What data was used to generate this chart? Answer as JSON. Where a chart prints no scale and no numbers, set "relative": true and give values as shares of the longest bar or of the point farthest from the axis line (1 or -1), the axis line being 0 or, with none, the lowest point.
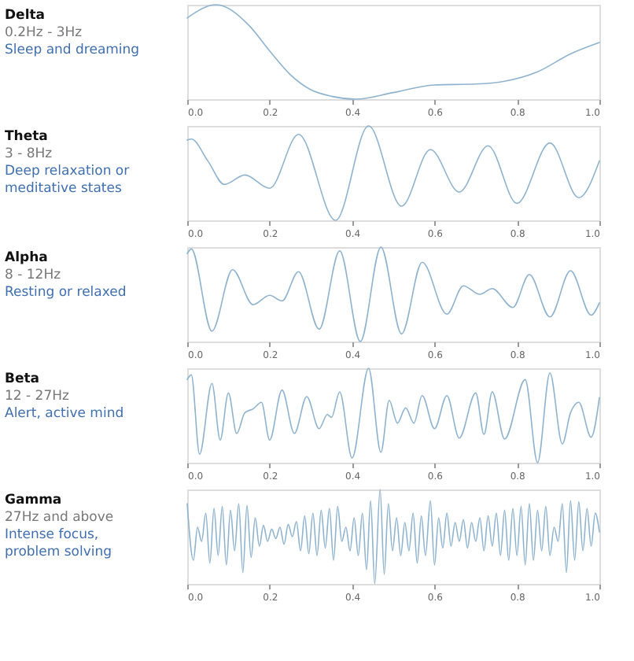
{
  "chart_data": [
    {
      "type": "line",
      "annotations": [
        "Delta",
        "0.2Hz - 3Hz",
        "Sleep and dreaming"
      ],
      "color": "#8fb3cf",
      "relative": true,
      "grid": false,
      "xlim": [
        0,
        1
      ],
      "xticks": [
        {
          "value": 0,
          "label": "0.0"
        },
        {
          "value": 0.2,
          "label": "0.2"
        },
        {
          "value": 0.4,
          "label": "0.4"
        },
        {
          "value": 0.6,
          "label": "0.6"
        },
        {
          "value": 0.8,
          "label": "0.8"
        },
        {
          "value": 1,
          "label": "1.0"
        }
      ],
      "x": [
        0,
        0.07,
        0.15,
        0.2,
        0.25,
        0.3,
        0.35,
        0.41,
        0.5,
        0.6,
        0.7,
        0.77,
        0.85,
        0.93,
        1.0
      ],
      "values": [
        0.86,
        1.0,
        0.78,
        0.51,
        0.26,
        0.1,
        0.03,
        0.0,
        0.07,
        0.15,
        0.16,
        0.19,
        0.29,
        0.48,
        0.6
      ]
    },
    {
      "type": "line",
      "annotations": [
        "Theta",
        "3 - 8Hz",
        "Deep relaxation or",
        "meditative states"
      ],
      "color": "#8fb3cf",
      "relative": true,
      "grid": false,
      "xlim": [
        0,
        1
      ],
      "xticks": [
        {
          "value": 0,
          "label": "0.0"
        },
        {
          "value": 0.2,
          "label": "0.2"
        },
        {
          "value": 0.4,
          "label": "0.4"
        },
        {
          "value": 0.6,
          "label": "0.6"
        },
        {
          "value": 0.8,
          "label": "0.8"
        },
        {
          "value": 1,
          "label": "1.0"
        }
      ],
      "x": [
        0,
        0.01,
        0.05,
        0.09,
        0.14,
        0.2,
        0.27,
        0.36,
        0.44,
        0.52,
        0.59,
        0.66,
        0.73,
        0.8,
        0.88,
        0.95,
        1.0
      ],
      "values": [
        0.85,
        0.86,
        0.63,
        0.38,
        0.48,
        0.34,
        0.91,
        0.0,
        1.0,
        0.15,
        0.75,
        0.3,
        0.79,
        0.18,
        0.82,
        0.24,
        0.63
      ]
    },
    {
      "type": "line",
      "annotations": [
        "Alpha",
        "8 - 12Hz",
        "Resting or relaxed"
      ],
      "color": "#8fb3cf",
      "relative": true,
      "grid": false,
      "xlim": [
        0,
        1
      ],
      "xticks": [
        {
          "value": 0,
          "label": "0.0"
        },
        {
          "value": 0.2,
          "label": "0.2"
        },
        {
          "value": 0.4,
          "label": "0.4"
        },
        {
          "value": 0.6,
          "label": "0.6"
        },
        {
          "value": 0.8,
          "label": "0.8"
        },
        {
          "value": 1,
          "label": "1.0"
        }
      ],
      "x": [
        0,
        0.01,
        0.06,
        0.11,
        0.16,
        0.2,
        0.23,
        0.27,
        0.32,
        0.37,
        0.42,
        0.47,
        0.52,
        0.57,
        0.63,
        0.67,
        0.71,
        0.74,
        0.79,
        0.83,
        0.88,
        0.93,
        0.98,
        1.0
      ],
      "values": [
        0.93,
        0.98,
        0.11,
        0.76,
        0.39,
        0.49,
        0.43,
        0.74,
        0.13,
        0.96,
        0.0,
        1.0,
        0.08,
        0.84,
        0.29,
        0.59,
        0.5,
        0.56,
        0.36,
        0.71,
        0.26,
        0.75,
        0.28,
        0.41
      ]
    },
    {
      "type": "line",
      "annotations": [
        "Beta",
        "12 - 27Hz",
        "Alert, active mind"
      ],
      "color": "#8fb3cf",
      "relative": true,
      "grid": false,
      "xlim": [
        0,
        1
      ],
      "xticks": [
        {
          "value": 0,
          "label": "0.0"
        },
        {
          "value": 0.2,
          "label": "0.2"
        },
        {
          "value": 0.4,
          "label": "0.4"
        },
        {
          "value": 0.6,
          "label": "0.6"
        },
        {
          "value": 0.8,
          "label": "0.8"
        },
        {
          "value": 1,
          "label": "1.0"
        }
      ],
      "x": [
        0,
        0.01,
        0.03,
        0.06,
        0.08,
        0.1,
        0.12,
        0.14,
        0.16,
        0.18,
        0.2,
        0.23,
        0.26,
        0.29,
        0.32,
        0.34,
        0.35,
        0.37,
        0.4,
        0.44,
        0.47,
        0.49,
        0.51,
        0.53,
        0.55,
        0.57,
        0.6,
        0.63,
        0.66,
        0.7,
        0.72,
        0.74,
        0.77,
        0.82,
        0.85,
        0.88,
        0.91,
        0.93,
        0.95,
        0.98,
        1.0
      ],
      "values": [
        0.88,
        0.93,
        0.09,
        0.84,
        0.24,
        0.74,
        0.31,
        0.53,
        0.57,
        0.64,
        0.24,
        0.77,
        0.31,
        0.7,
        0.36,
        0.51,
        0.48,
        0.75,
        0.05,
        1.0,
        0.11,
        0.66,
        0.42,
        0.58,
        0.42,
        0.71,
        0.36,
        0.71,
        0.26,
        0.74,
        0.3,
        0.75,
        0.25,
        0.88,
        0.0,
        0.95,
        0.2,
        0.53,
        0.64,
        0.27,
        0.69
      ]
    },
    {
      "type": "line",
      "annotations": [
        "Gamma",
        "27Hz and above",
        "Intense focus,",
        "problem solving"
      ],
      "color": "#8fb3cf",
      "relative": true,
      "grid": false,
      "xlim": [
        0,
        1
      ],
      "xticks": [
        {
          "value": 0,
          "label": "0.0"
        },
        {
          "value": 0.2,
          "label": "0.2"
        },
        {
          "value": 0.4,
          "label": "0.4"
        },
        {
          "value": 0.6,
          "label": "0.6"
        },
        {
          "value": 0.8,
          "label": "0.8"
        },
        {
          "value": 1,
          "label": "1.0"
        }
      ],
      "x": [
        0,
        0.015,
        0.025,
        0.035,
        0.045,
        0.055,
        0.065,
        0.075,
        0.085,
        0.095,
        0.105,
        0.115,
        0.125,
        0.135,
        0.145,
        0.155,
        0.165,
        0.175,
        0.185,
        0.195,
        0.205,
        0.215,
        0.225,
        0.235,
        0.245,
        0.255,
        0.265,
        0.275,
        0.285,
        0.295,
        0.305,
        0.315,
        0.325,
        0.335,
        0.345,
        0.355,
        0.365,
        0.375,
        0.385,
        0.395,
        0.405,
        0.415,
        0.425,
        0.435,
        0.445,
        0.455,
        0.468,
        0.478,
        0.488,
        0.498,
        0.508,
        0.518,
        0.528,
        0.538,
        0.548,
        0.558,
        0.568,
        0.578,
        0.59,
        0.6,
        0.61,
        0.62,
        0.63,
        0.64,
        0.65,
        0.66,
        0.67,
        0.68,
        0.69,
        0.7,
        0.71,
        0.72,
        0.73,
        0.74,
        0.75,
        0.76,
        0.77,
        0.78,
        0.79,
        0.8,
        0.81,
        0.82,
        0.83,
        0.84,
        0.85,
        0.86,
        0.87,
        0.88,
        0.89,
        0.9,
        0.91,
        0.92,
        0.93,
        0.94,
        0.95,
        0.96,
        0.97,
        0.98,
        0.99,
        1.0
      ],
      "values": [
        0.85,
        0.25,
        0.6,
        0.45,
        0.75,
        0.22,
        0.8,
        0.3,
        0.82,
        0.2,
        0.78,
        0.35,
        0.85,
        0.12,
        0.83,
        0.28,
        0.7,
        0.4,
        0.62,
        0.45,
        0.58,
        0.48,
        0.6,
        0.42,
        0.63,
        0.5,
        0.66,
        0.35,
        0.72,
        0.32,
        0.75,
        0.3,
        0.78,
        0.38,
        0.8,
        0.25,
        0.82,
        0.45,
        0.6,
        0.35,
        0.7,
        0.3,
        0.75,
        0.15,
        0.88,
        0.0,
        1.0,
        0.1,
        0.85,
        0.35,
        0.7,
        0.3,
        0.65,
        0.35,
        0.75,
        0.22,
        0.72,
        0.3,
        0.88,
        0.2,
        0.7,
        0.38,
        0.75,
        0.4,
        0.65,
        0.45,
        0.68,
        0.38,
        0.65,
        0.45,
        0.7,
        0.35,
        0.72,
        0.4,
        0.75,
        0.3,
        0.78,
        0.25,
        0.8,
        0.3,
        0.82,
        0.2,
        0.85,
        0.25,
        0.78,
        0.35,
        0.82,
        0.3,
        0.6,
        0.45,
        0.85,
        0.12,
        0.88,
        0.25,
        0.87,
        0.35,
        0.8,
        0.4,
        0.75,
        0.55
      ]
    }
  ]
}
